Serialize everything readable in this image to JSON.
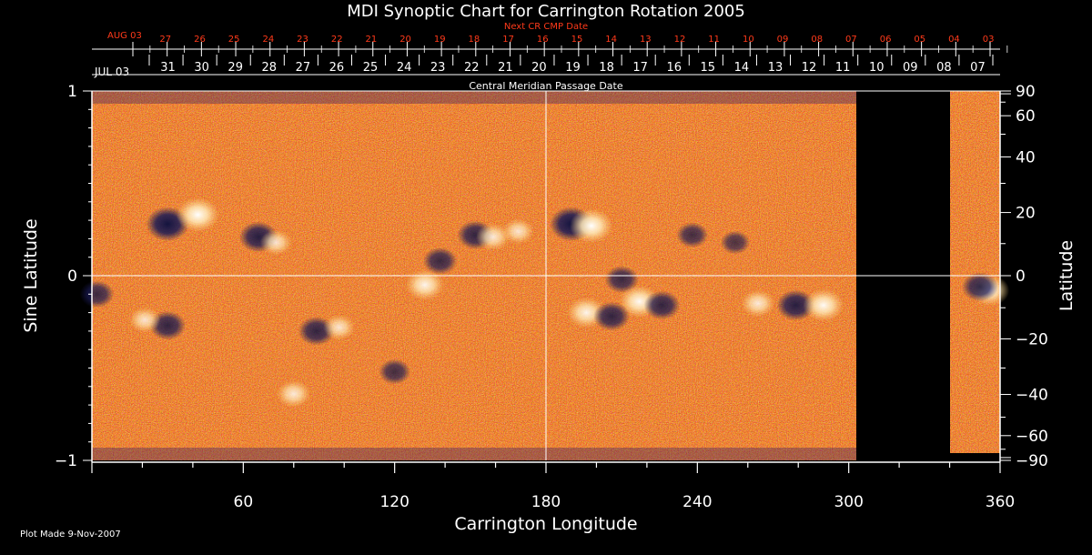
{
  "chart_data": {
    "type": "heatmap",
    "title": "MDI Synoptic Chart for Carrington Rotation 2005",
    "top_axis_label": "Next CR CMP Date",
    "second_axis_label": "Central Meridian Passage Date",
    "xlabel": "Carrington Longitude",
    "ylabel_left": "Sine Latitude",
    "ylabel_right": "Latitude",
    "xlim": [
      0,
      360
    ],
    "ylim": [
      -1,
      1
    ],
    "x_ticks": [
      60,
      120,
      180,
      240,
      300,
      360
    ],
    "y_ticks_left": [
      {
        "value": 1,
        "label": "1"
      },
      {
        "value": 0,
        "label": "0"
      },
      {
        "value": -1,
        "label": "−1"
      }
    ],
    "y_ticks_right": [
      {
        "lat": 90,
        "label": "90"
      },
      {
        "lat": 60,
        "label": "60"
      },
      {
        "lat": 40,
        "label": "40"
      },
      {
        "lat": 20,
        "label": "20"
      },
      {
        "lat": 0,
        "label": "0"
      },
      {
        "lat": -20,
        "label": "−20"
      },
      {
        "lat": -40,
        "label": "−40"
      },
      {
        "lat": -60,
        "label": "−60"
      },
      {
        "lat": -90,
        "label": "−90"
      }
    ],
    "next_cr_dates": {
      "start_label": "AUG 03",
      "labels": [
        "27",
        "26",
        "25",
        "24",
        "23",
        "22",
        "21",
        "20",
        "19",
        "18",
        "17",
        "16",
        "15",
        "14",
        "13",
        "12",
        "11",
        "10",
        "09",
        "08",
        "07",
        "06",
        "05",
        "04",
        "03"
      ]
    },
    "cmp_dates": {
      "start_label": "JUL 03",
      "labels": [
        "31",
        "30",
        "29",
        "28",
        "27",
        "26",
        "25",
        "24",
        "23",
        "22",
        "21",
        "20",
        "19",
        "18",
        "17",
        "16",
        "15",
        "14",
        "13",
        "12",
        "11",
        "10",
        "09",
        "08",
        "07"
      ]
    },
    "data_gap_longitude": [
      303,
      340
    ],
    "grid_lines": {
      "longitude": 180,
      "sine_latitude": 0
    },
    "colormap": [
      "#1a1a55",
      "#8a1d06",
      "#d23a08",
      "#ff6a14",
      "#ffd27a",
      "#ffffff"
    ],
    "magnetic_regions": [
      {
        "lon": 30,
        "sinlat": 0.28,
        "polarity": "negative",
        "strength": 1.0
      },
      {
        "lon": 42,
        "sinlat": 0.33,
        "polarity": "positive",
        "strength": 1.0
      },
      {
        "lon": 66,
        "sinlat": 0.21,
        "polarity": "negative",
        "strength": 0.8
      },
      {
        "lon": 73,
        "sinlat": 0.18,
        "polarity": "positive",
        "strength": 0.5
      },
      {
        "lon": 138,
        "sinlat": 0.08,
        "polarity": "negative",
        "strength": 0.6
      },
      {
        "lon": 132,
        "sinlat": -0.05,
        "polarity": "positive",
        "strength": 0.8
      },
      {
        "lon": 152,
        "sinlat": 0.22,
        "polarity": "negative",
        "strength": 0.7
      },
      {
        "lon": 159,
        "sinlat": 0.21,
        "polarity": "positive",
        "strength": 0.6
      },
      {
        "lon": 169,
        "sinlat": 0.24,
        "polarity": "positive",
        "strength": 0.5
      },
      {
        "lon": 190,
        "sinlat": 0.28,
        "polarity": "negative",
        "strength": 1.0
      },
      {
        "lon": 198,
        "sinlat": 0.27,
        "polarity": "positive",
        "strength": 1.0
      },
      {
        "lon": 210,
        "sinlat": -0.02,
        "polarity": "negative",
        "strength": 0.6
      },
      {
        "lon": 217,
        "sinlat": -0.14,
        "polarity": "positive",
        "strength": 0.9
      },
      {
        "lon": 226,
        "sinlat": -0.16,
        "polarity": "negative",
        "strength": 0.7
      },
      {
        "lon": 196,
        "sinlat": -0.2,
        "polarity": "positive",
        "strength": 0.8
      },
      {
        "lon": 206,
        "sinlat": -0.22,
        "polarity": "negative",
        "strength": 0.7
      },
      {
        "lon": 264,
        "sinlat": -0.15,
        "polarity": "positive",
        "strength": 0.6
      },
      {
        "lon": 279,
        "sinlat": -0.16,
        "polarity": "negative",
        "strength": 0.8
      },
      {
        "lon": 290,
        "sinlat": -0.16,
        "polarity": "positive",
        "strength": 0.9
      },
      {
        "lon": 30,
        "sinlat": -0.27,
        "polarity": "negative",
        "strength": 0.7
      },
      {
        "lon": 21,
        "sinlat": -0.24,
        "polarity": "positive",
        "strength": 0.5
      },
      {
        "lon": 89,
        "sinlat": -0.3,
        "polarity": "negative",
        "strength": 0.7
      },
      {
        "lon": 98,
        "sinlat": -0.28,
        "polarity": "positive",
        "strength": 0.5
      },
      {
        "lon": 120,
        "sinlat": -0.52,
        "polarity": "negative",
        "strength": 0.5
      },
      {
        "lon": 80,
        "sinlat": -0.64,
        "polarity": "positive",
        "strength": 0.6
      },
      {
        "lon": 356,
        "sinlat": -0.08,
        "polarity": "positive",
        "strength": 0.8
      },
      {
        "lon": 352,
        "sinlat": -0.06,
        "polarity": "negative",
        "strength": 0.7
      },
      {
        "lon": 238,
        "sinlat": 0.22,
        "polarity": "negative",
        "strength": 0.5
      },
      {
        "lon": 255,
        "sinlat": 0.18,
        "polarity": "negative",
        "strength": 0.4
      },
      {
        "lon": 2,
        "sinlat": -0.1,
        "polarity": "negative",
        "strength": 0.6
      }
    ]
  },
  "footer": {
    "plot_made": "Plot Made  9-Nov-2007"
  }
}
